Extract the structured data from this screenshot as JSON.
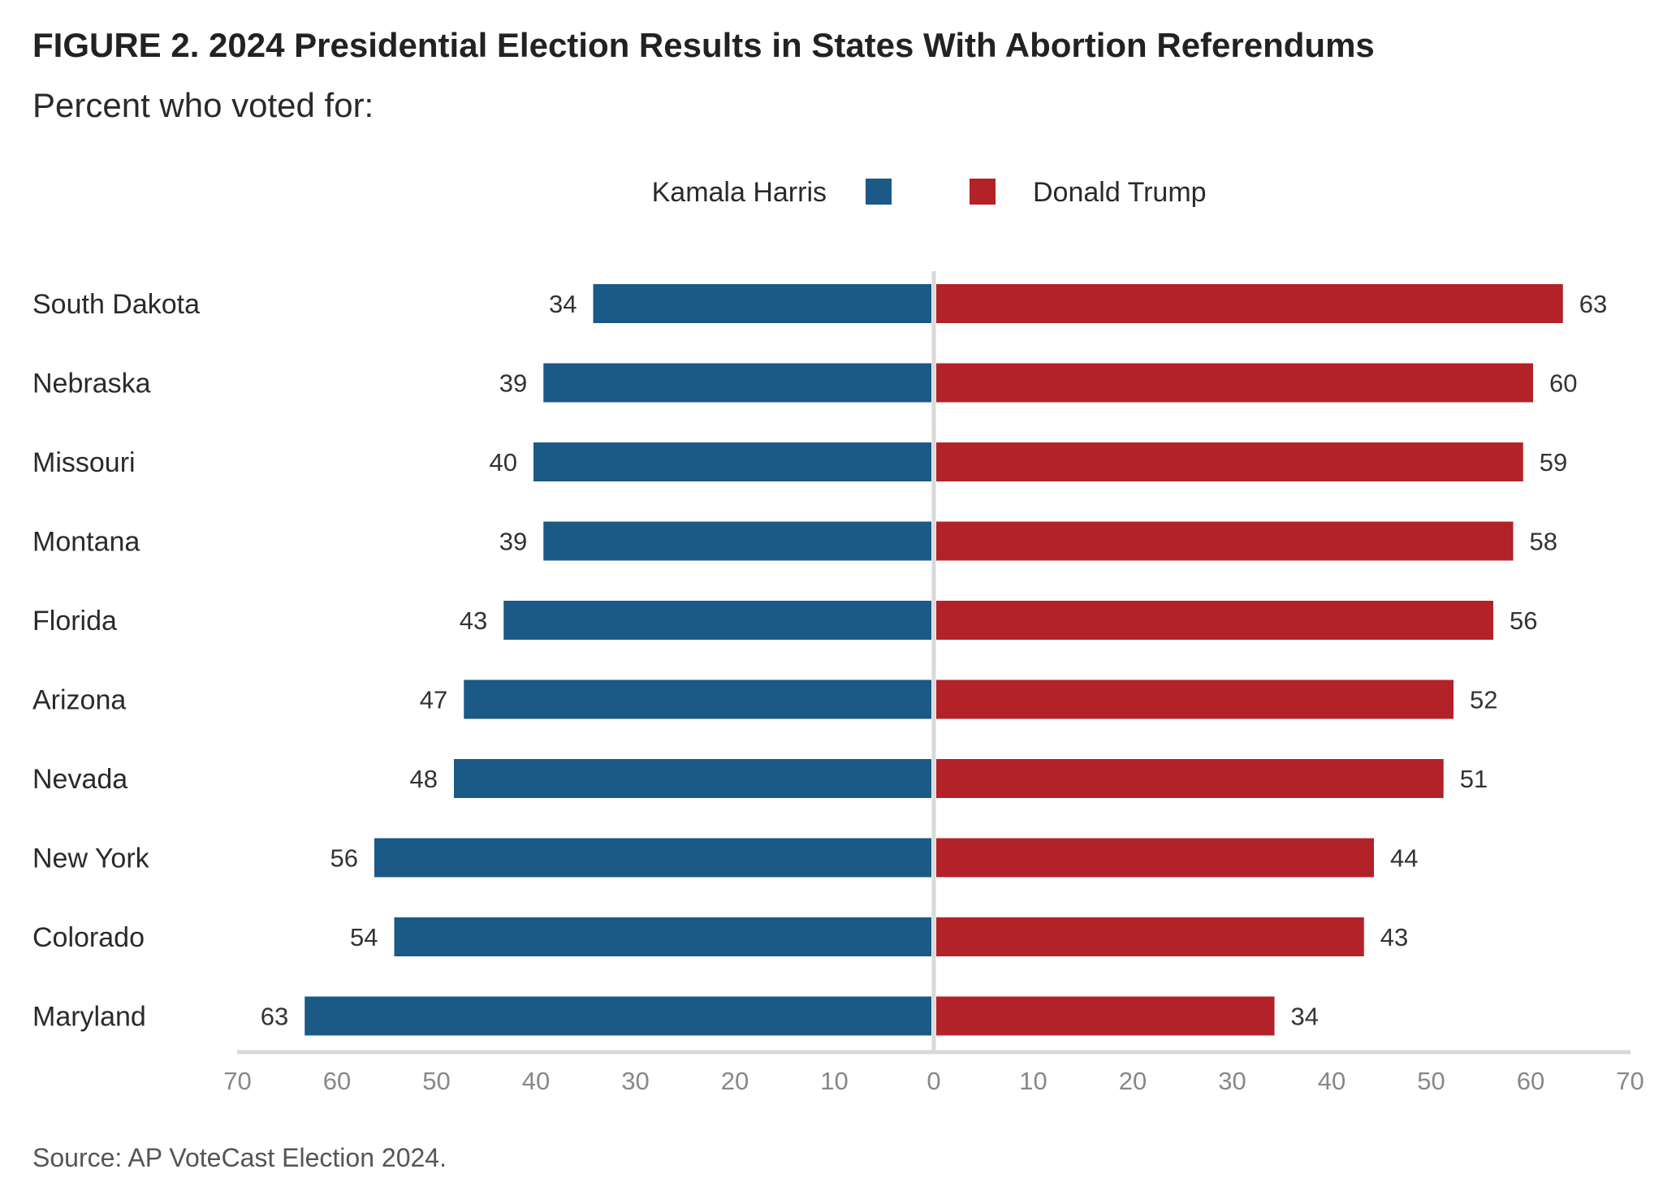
{
  "title": "FIGURE 2.  2024 Presidential Election Results in States With Abortion Referendums",
  "subtitle": "Percent who voted for:",
  "source": "Source: AP VoteCast Election 2024.",
  "colors": {
    "harris": "#1b5987",
    "trump": "#b22228",
    "axis": "#d9d9d9",
    "tick_label": "#888888",
    "category_label": "#2a2a2a",
    "value_label": "#333333"
  },
  "chart_data": {
    "type": "bar",
    "orientation": "horizontal-diverging",
    "categories": [
      "South Dakota",
      "Nebraska",
      "Missouri",
      "Montana",
      "Florida",
      "Arizona",
      "Nevada",
      "New York",
      "Colorado",
      "Maryland"
    ],
    "series": [
      {
        "name": "Kamala Harris",
        "side": "left",
        "values": [
          34,
          39,
          40,
          39,
          43,
          47,
          48,
          56,
          54,
          63
        ]
      },
      {
        "name": "Donald Trump",
        "side": "right",
        "values": [
          63,
          60,
          59,
          58,
          56,
          52,
          51,
          44,
          43,
          34
        ]
      }
    ],
    "xlim": [
      -70,
      70
    ],
    "x_ticks": [
      -70,
      -60,
      -50,
      -40,
      -30,
      -20,
      -10,
      0,
      10,
      20,
      30,
      40,
      50,
      60,
      70
    ],
    "x_tick_labels": [
      "70",
      "60",
      "50",
      "40",
      "30",
      "20",
      "10",
      "0",
      "10",
      "20",
      "30",
      "40",
      "50",
      "60",
      "70"
    ],
    "legend": {
      "position": "top-center",
      "entries": [
        "Kamala Harris",
        "Donald Trump"
      ]
    },
    "grid": false,
    "value_labels": true
  }
}
